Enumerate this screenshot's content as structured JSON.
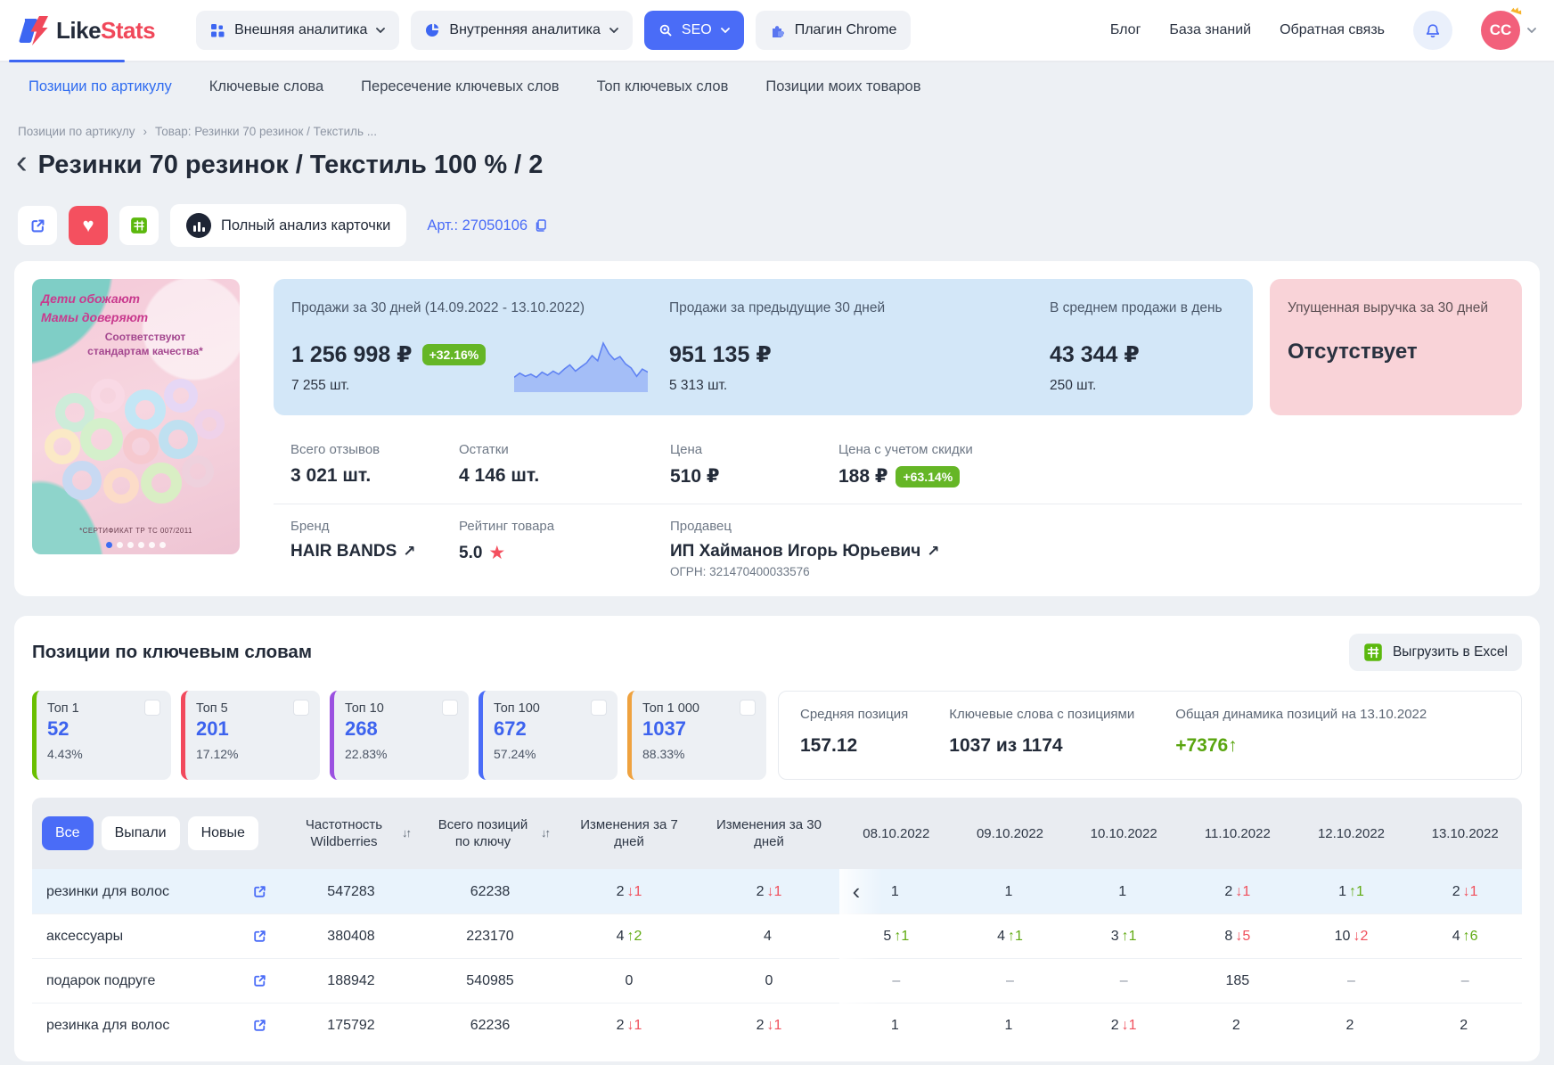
{
  "header": {
    "logo": {
      "like": "Like",
      "stats": "Stats"
    },
    "nav": [
      {
        "label": "Внешняя аналитика"
      },
      {
        "label": "Внутренняя аналитика"
      },
      {
        "label": "SEO"
      },
      {
        "label": "Плагин Chrome"
      }
    ],
    "links": [
      "Блог",
      "База знаний",
      "Обратная связь"
    ],
    "avatar_initials": "CC"
  },
  "tabs": [
    "Позиции по артикулу",
    "Ключевые слова",
    "Пересечение ключевых слов",
    "Топ ключевых слов",
    "Позиции моих товаров"
  ],
  "breadcrumb": {
    "root": "Позиции по артикулу",
    "sep": "›",
    "current": "Товар: Резинки 70 резинок / Текстиль ..."
  },
  "product": {
    "title": "Резинки 70 резинок / Текстиль 100 % / 2",
    "article": "Арт.: 27050106",
    "analyze_button": "Полный анализ карточки",
    "image_text": {
      "line1": "Дети обожают\nМамы доверяют",
      "line2": "Соответствуют стандартам качества*",
      "cert": "*СЕРТИФИКАТ ТР ТС 007/2011"
    },
    "sales30": {
      "label": "Продажи за 30 дней (14.09.2022 - 13.10.2022)",
      "value": "1 256 998 ₽",
      "badge": "+32.16%",
      "qty": "7 255 шт.",
      "sparkline": [
        10,
        14,
        11,
        13,
        10,
        15,
        12,
        16,
        13,
        18,
        22,
        16,
        20,
        24,
        31,
        26,
        43,
        33,
        27,
        30,
        23,
        19,
        11,
        18,
        15
      ]
    },
    "sales_prev": {
      "label": "Продажи за предыдущие 30 дней",
      "value": "951 135 ₽",
      "qty": "5 313 шт."
    },
    "sales_avg": {
      "label": "В среднем продажи в день",
      "value": "43 344 ₽",
      "qty": "250 шт."
    },
    "lost_revenue": {
      "label": "Упущенная выручка за 30 дней",
      "value": "Отсутствует"
    },
    "reviews": {
      "label": "Всего отзывов",
      "value": "3 021 шт."
    },
    "stock": {
      "label": "Остатки",
      "value": "4 146 шт."
    },
    "price": {
      "label": "Цена",
      "value": "510 ₽"
    },
    "discount_price": {
      "label": "Цена с учетом скидки",
      "value": "188 ₽",
      "badge": "+63.14%"
    },
    "brand": {
      "label": "Бренд",
      "value": "HAIR BANDS",
      "arrow": "↗"
    },
    "rating": {
      "label": "Рейтинг товара",
      "value": "5.0",
      "star": "★"
    },
    "seller": {
      "label": "Продавец",
      "value": "ИП Хайманов Игорь Юрьевич",
      "arrow": "↗",
      "ogrn": "ОГРН: 321470400033576"
    }
  },
  "keywords": {
    "title": "Позиции по ключевым словам",
    "export_label": "Выгрузить в Excel",
    "top_cards": [
      {
        "label": "Топ 1",
        "value": "52",
        "percent": "4.43%",
        "color": "#6abf00"
      },
      {
        "label": "Топ 5",
        "value": "201",
        "percent": "17.12%",
        "color": "#f2495c"
      },
      {
        "label": "Топ 10",
        "value": "268",
        "percent": "22.83%",
        "color": "#9b51e0"
      },
      {
        "label": "Топ 100",
        "value": "672",
        "percent": "57.24%",
        "color": "#4a6cf7"
      },
      {
        "label": "Топ 1 000",
        "value": "1037",
        "percent": "88.33%",
        "color": "#efa23f"
      }
    ],
    "summary": {
      "avg_position": {
        "label": "Средняя позиция",
        "value": "157.12"
      },
      "with_positions": {
        "label": "Ключевые слова с позициями",
        "value": "1037 из 1174"
      },
      "dynamics": {
        "label": "Общая динамика позиций на 13.10.2022",
        "value": "+7376↑"
      }
    },
    "table": {
      "filters": [
        "Все",
        "Выпали",
        "Новые"
      ],
      "columns": {
        "freq": "Частотность Wildberries",
        "total": "Всего позиций по ключу",
        "ch7": "Изменения за 7 дней",
        "ch30": "Изменения за 30 дней"
      },
      "sort_icon": "↓↑",
      "scroll_left": "‹",
      "dates": [
        "08.10.2022",
        "09.10.2022",
        "10.10.2022",
        "11.10.2022",
        "12.10.2022",
        "13.10.2022"
      ],
      "rows": [
        {
          "keyword": "резинки для волос",
          "freq": "547283",
          "total": "62238",
          "ch7": {
            "v": "2",
            "delta": "↓1",
            "trend": "down"
          },
          "ch30": {
            "v": "2",
            "delta": "↓1",
            "trend": "down"
          },
          "dates": [
            {
              "v": "1"
            },
            {
              "v": "1"
            },
            {
              "v": "1"
            },
            {
              "v": "2",
              "delta": "↓1",
              "trend": "down"
            },
            {
              "v": "1",
              "delta": "↑1",
              "trend": "up"
            },
            {
              "v": "2",
              "delta": "↓1",
              "trend": "down"
            }
          ]
        },
        {
          "keyword": "аксессуары",
          "freq": "380408",
          "total": "223170",
          "ch7": {
            "v": "4",
            "delta": "↑2",
            "trend": "up"
          },
          "ch30": {
            "v": "4"
          },
          "dates": [
            {
              "v": "5",
              "delta": "↑1",
              "trend": "up"
            },
            {
              "v": "4",
              "delta": "↑1",
              "trend": "up"
            },
            {
              "v": "3",
              "delta": "↑1",
              "trend": "up"
            },
            {
              "v": "8",
              "delta": "↓5",
              "trend": "down"
            },
            {
              "v": "10",
              "delta": "↓2",
              "trend": "down"
            },
            {
              "v": "4",
              "delta": "↑6",
              "trend": "up"
            }
          ]
        },
        {
          "keyword": "подарок подруге",
          "freq": "188942",
          "total": "540985",
          "ch7": {
            "v": "0"
          },
          "ch30": {
            "v": "0"
          },
          "dates": [
            {
              "v": "–"
            },
            {
              "v": "–"
            },
            {
              "v": "–"
            },
            {
              "v": "185"
            },
            {
              "v": "–"
            },
            {
              "v": "–"
            }
          ]
        },
        {
          "keyword": "резинка для волос",
          "freq": "175792",
          "total": "62236",
          "ch7": {
            "v": "2",
            "delta": "↓1",
            "trend": "down"
          },
          "ch30": {
            "v": "2",
            "delta": "↓1",
            "trend": "down"
          },
          "dates": [
            {
              "v": "1"
            },
            {
              "v": "1"
            },
            {
              "v": "2",
              "delta": "↓1",
              "trend": "down"
            },
            {
              "v": "2"
            },
            {
              "v": "2"
            },
            {
              "v": "2"
            }
          ]
        }
      ]
    }
  }
}
